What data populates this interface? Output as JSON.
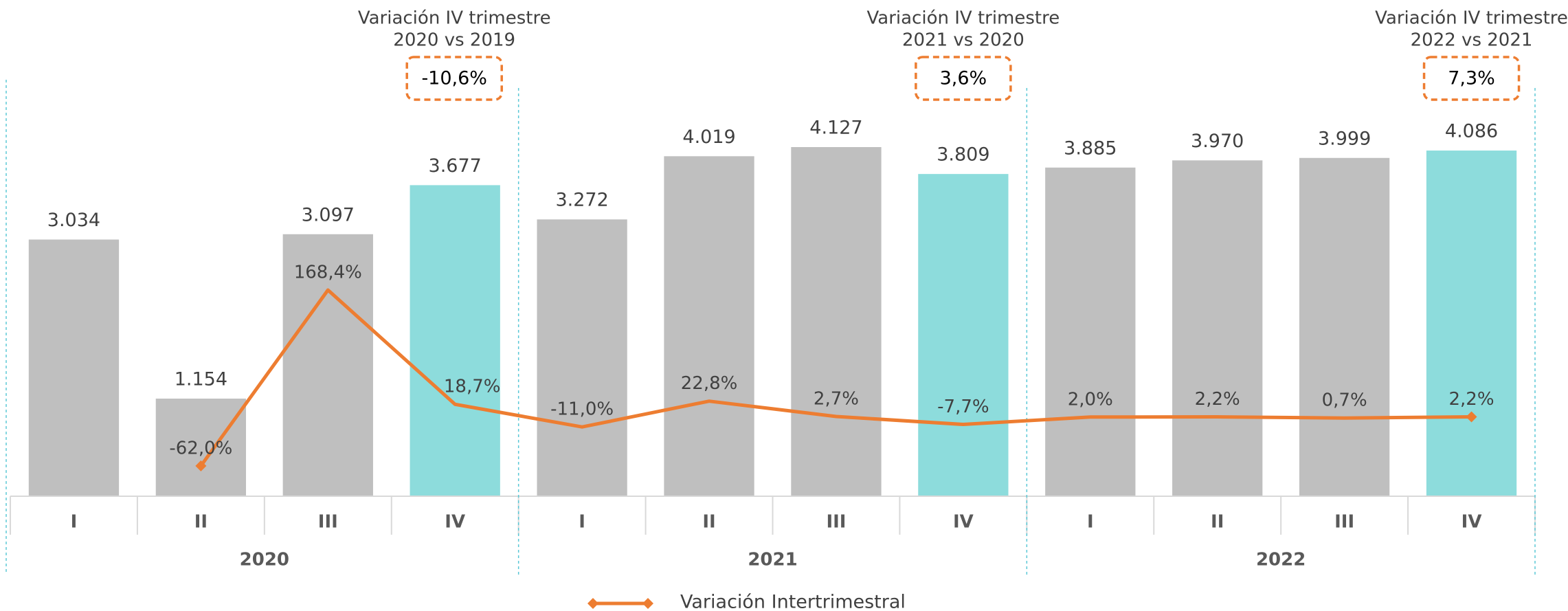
{
  "chart_data": {
    "type": "bar",
    "categories": [
      "I",
      "II",
      "III",
      "IV",
      "I",
      "II",
      "III",
      "IV",
      "I",
      "II",
      "III",
      "IV"
    ],
    "groups": [
      "2020",
      "2021",
      "2022"
    ],
    "values": [
      3034,
      1154,
      3097,
      3677,
      3272,
      4019,
      4127,
      3809,
      3885,
      3970,
      3999,
      4086
    ],
    "value_labels": [
      "3.034",
      "1.154",
      "3.097",
      "3.677",
      "3.272",
      "4.019",
      "4.127",
      "3.809",
      "3.885",
      "3.970",
      "3.999",
      "4.086"
    ],
    "colors": [
      "#bfbfbf",
      "#bfbfbf",
      "#bfbfbf",
      "#8ddcdc",
      "#bfbfbf",
      "#bfbfbf",
      "#bfbfbf",
      "#8ddcdc",
      "#bfbfbf",
      "#bfbfbf",
      "#bfbfbf",
      "#8ddcdc"
    ],
    "series": [
      {
        "name": "Variación Intertrimestral",
        "type": "line",
        "color": "#ed7d31",
        "values": [
          null,
          -62.0,
          168.4,
          18.7,
          -11.0,
          22.8,
          2.7,
          -7.7,
          2.0,
          2.2,
          0.7,
          2.2
        ],
        "value_labels": [
          null,
          "-62,0%",
          "168,4%",
          "18,7%",
          "-11,0%",
          "22,8%",
          "2,7%",
          "-7,7%",
          "2,0%",
          "2,2%",
          "0,7%",
          "2,2%"
        ]
      }
    ],
    "annotations": [
      {
        "title": "Variación IV trimestre",
        "subtitle": "2020 vs 2019",
        "label": "-10,6%"
      },
      {
        "title": "Variación IV trimestre",
        "subtitle": "2021 vs 2020",
        "label": "3,6%"
      },
      {
        "title": "Variación IV trimestre",
        "subtitle": "2022 vs 2021",
        "label": "7,3%"
      }
    ],
    "legend": "bottom"
  }
}
